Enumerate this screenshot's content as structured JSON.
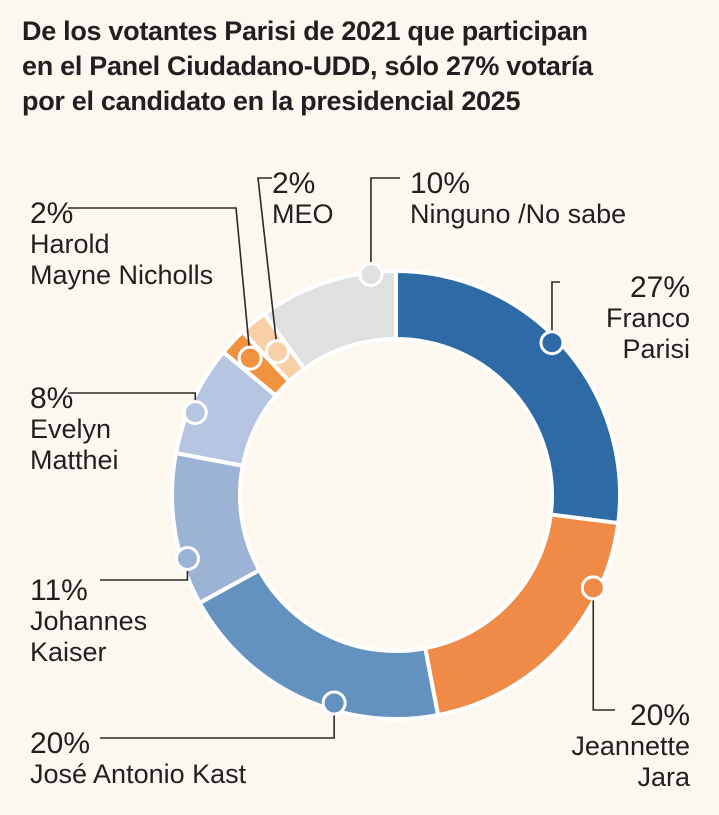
{
  "title_lines": [
    "De los votantes Parisi de 2021 que participan",
    "en el Panel Ciudadano-UDD, sólo 27% votaría",
    "por el candidato en la presidencial 2025"
  ],
  "chart_data": {
    "type": "pie",
    "donut": true,
    "start_angle_deg": 0,
    "direction": "clockwise",
    "slices": [
      {
        "label_lines": [
          "Franco",
          "Parisi"
        ],
        "value": 27,
        "pct_label": "27%",
        "color": "#2e6aa6"
      },
      {
        "label_lines": [
          "Jeannette",
          "Jara"
        ],
        "value": 20,
        "pct_label": "20%",
        "color": "#ef8a47"
      },
      {
        "label_lines": [
          "José Antonio Kast"
        ],
        "value": 20,
        "pct_label": "20%",
        "color": "#6391c0"
      },
      {
        "label_lines": [
          "Johannes",
          "Kaiser"
        ],
        "value": 11,
        "pct_label": "11%",
        "color": "#9db3d6"
      },
      {
        "label_lines": [
          "Evelyn",
          "Matthei"
        ],
        "value": 8,
        "pct_label": "8%",
        "color": "#b6c5e1"
      },
      {
        "label_lines": [
          "Harold",
          "Mayne Nicholls"
        ],
        "value": 2,
        "pct_label": "2%",
        "color": "#f0923e"
      },
      {
        "label_lines": [
          "MEO"
        ],
        "value": 2,
        "pct_label": "2%",
        "color": "#f8cfa6"
      },
      {
        "label_lines": [
          "Ninguno /No sabe"
        ],
        "value": 10,
        "pct_label": "10%",
        "color": "#dfe1e1"
      }
    ]
  }
}
